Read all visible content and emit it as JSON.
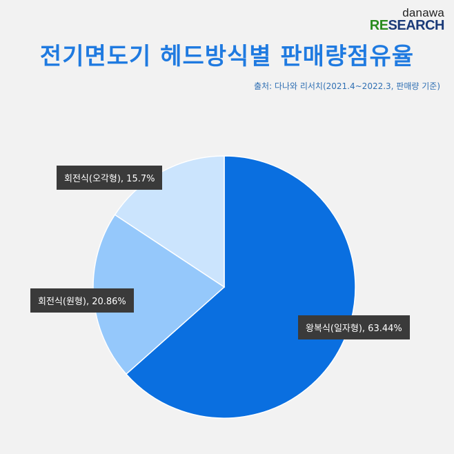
{
  "logo": {
    "top": "danawa",
    "re": "RE",
    "search": "SEARCH"
  },
  "title": "전기면도기 헤드방식별 판매량점유율",
  "source": "출처: 다나와 리서치(2021.4~2022.3, 판매량 기준)",
  "chart_data": {
    "type": "pie",
    "title": "전기면도기 헤드방식별 판매량점유율",
    "slices": [
      {
        "label": "왕복식(일자형), 63.44%",
        "name": "왕복식(일자형)",
        "value": 63.44,
        "color": "#0a6fe0"
      },
      {
        "label": "회전식(원형), 20.86%",
        "name": "회전식(원형)",
        "value": 20.86,
        "color": "#95c8fb"
      },
      {
        "label": "회전식(오각형), 15.7%",
        "name": "회전식(오각형)",
        "value": 15.7,
        "color": "#cbe4fd"
      }
    ],
    "start_angle": "12 o'clock",
    "direction": "clockwise",
    "legend": "none",
    "label_style": "dark boxes with white text"
  }
}
